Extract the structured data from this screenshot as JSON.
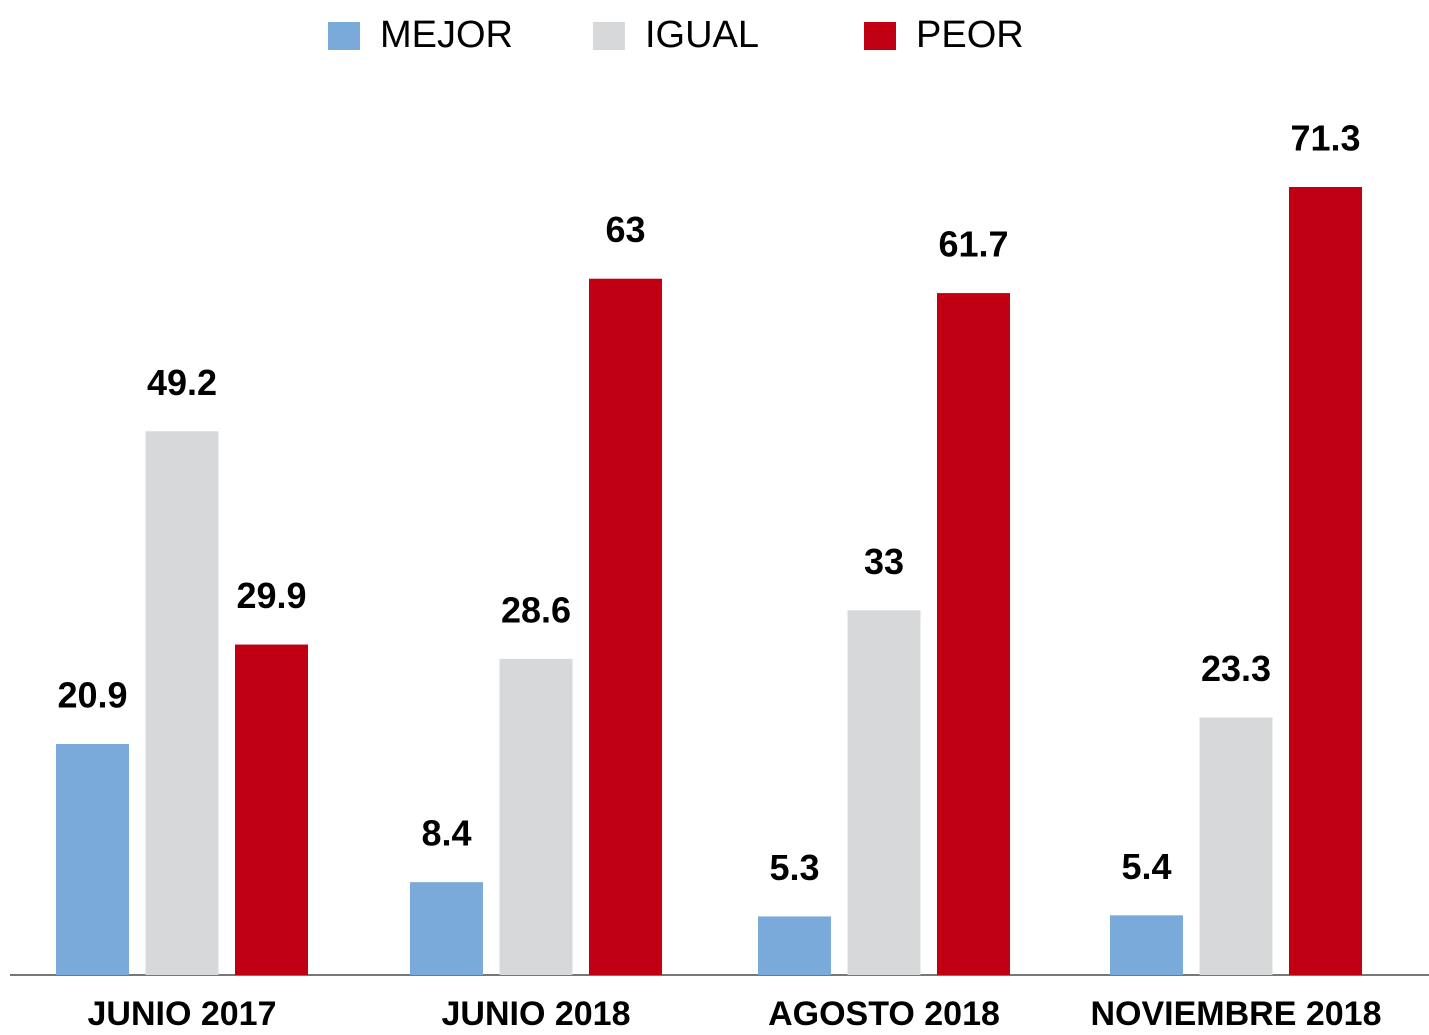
{
  "chart_data": {
    "type": "bar",
    "categories": [
      "JUNIO 2017",
      "JUNIO 2018",
      "AGOSTO 2018",
      "NOVIEMBRE 2018"
    ],
    "series": [
      {
        "name": "MEJOR",
        "color": "#7aaad9",
        "values": [
          20.9,
          8.4,
          5.3,
          5.4
        ]
      },
      {
        "name": "IGUAL",
        "color": "#d7d8da",
        "values": [
          49.2,
          28.6,
          33,
          23.3
        ]
      },
      {
        "name": "PEOR",
        "color": "#c00012",
        "values": [
          29.9,
          63,
          61.7,
          71.3
        ]
      }
    ],
    "legend": "top"
  }
}
